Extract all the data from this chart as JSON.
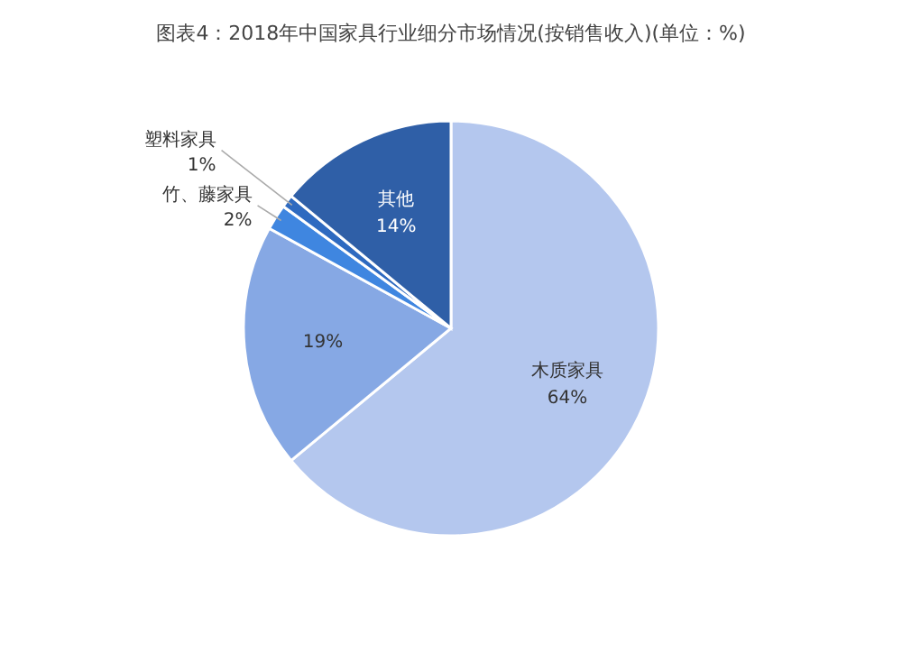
{
  "chart_data": {
    "type": "pie",
    "title": "图表4：2018年中国家具行业细分市场情况(按销售收入)(单位：%)",
    "categories": [
      "木质家具",
      null,
      "竹、藤家具",
      "塑料家具",
      "其他"
    ],
    "values": [
      64,
      19,
      2,
      1,
      14
    ],
    "colors": [
      "#b4c7ee",
      "#86a8e4",
      "#3f86e0",
      "#2e6ac0",
      "#2f5fa7"
    ],
    "value_labels": [
      "64%",
      "19%",
      "2%",
      "1%",
      "14%"
    ]
  }
}
